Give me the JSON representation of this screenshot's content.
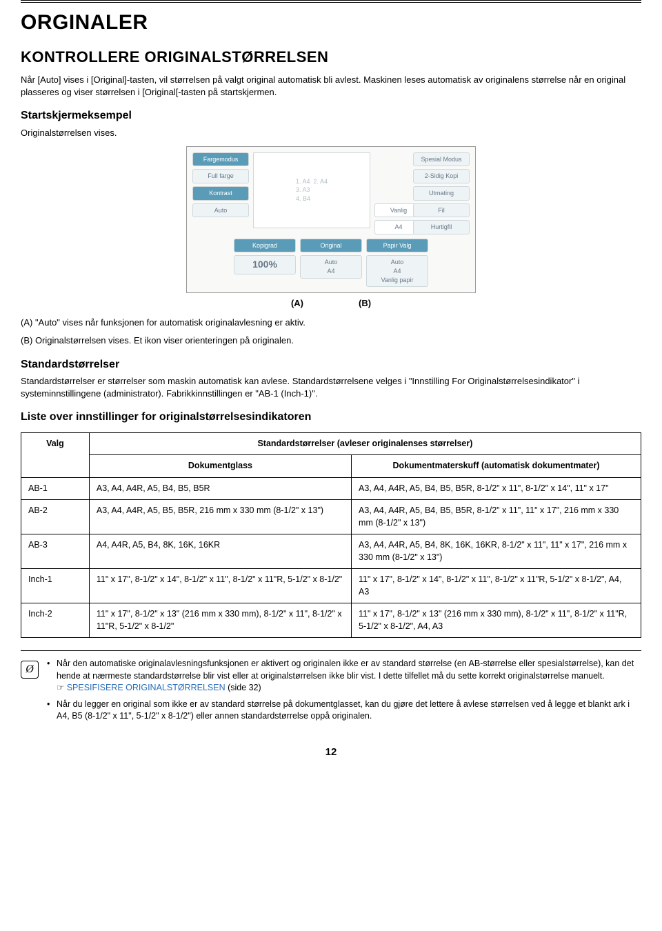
{
  "page": {
    "h1": "ORGINALER",
    "h2": "KONTROLLERE ORIGINALSTØRRELSEN",
    "intro1": "Når [Auto] vises i [Original]-tasten, vil størrelsen på valgt original automatisk bli avlest. Maskinen leses automatisk av originalens størrelse når en original plasseres og viser størrelsen i [Original[-tasten på startskjermen.",
    "h3_start": "Startskjermeksempel",
    "start_sub": "Originalstørrelsen vises.",
    "ab_label_a": "(A)",
    "ab_label_b": "(B)",
    "desc_a": "(A) \"Auto\" vises når funksjonen for automatisk originalavlesning er aktiv.",
    "desc_b": "(B) Originalstørrelsen vises. Et ikon viser orienteringen på originalen.",
    "h3_std": "Standardstørrelser",
    "std_desc": "Standardstørrelser er størrelser som maskin automatisk kan avlese. Standardstørrelsene velges i \"Innstilling For Originalstørrelsesindikator\" i systeminnstillingene (administrator). Fabrikkinnstillingen er \"AB-1 (Inch-1)\".",
    "h3_list": "Liste over innstillinger for originalstørrelsesindikatoren",
    "page_number": "12"
  },
  "ui": {
    "fargemodus": "Fargemodus",
    "full_farge": "Full farge",
    "kontrast": "Kontrast",
    "auto": "Auto",
    "kopigrad": "Kopigrad",
    "percent": "100%",
    "original": "Original",
    "auto2": "Auto",
    "a4": "A4",
    "papir_valg": "Papir Valg",
    "auto3": "Auto",
    "a4_2": "A4",
    "vanlig_papir": "Vanlig papir",
    "vanlig": "Vanlig",
    "a4_3": "A4",
    "spesial": "Spesial Modus",
    "tosidig": "2-Sidig Kopi",
    "utmating": "Utmating",
    "fil": "Fil",
    "hurtigfil": "Hurtigfil",
    "trays": "1. A4  2. A4\n3. A3\n4. B4"
  },
  "table": {
    "header_top": "Standardstørrelser (avleser originalenses størrelser)",
    "header_valg": "Valg",
    "header_glass": "Dokumentglass",
    "header_mater": "Dokumentmaterskuff (automatisk dokumentmater)",
    "rows": [
      {
        "valg": "AB-1",
        "glass": "A3, A4, A4R, A5, B4, B5, B5R",
        "mater": "A3, A4, A4R, A5, B4, B5, B5R, 8-1/2\" x 11\", 8-1/2\" x 14\", 11\" x 17\""
      },
      {
        "valg": "AB-2",
        "glass": "A3, A4, A4R, A5, B5, B5R, 216 mm x 330 mm (8-1/2\" x 13\")",
        "mater": "A3, A4, A4R, A5, B4, B5, B5R, 8-1/2\" x 11\", 11\" x 17\", 216 mm x 330 mm (8-1/2\" x 13\")"
      },
      {
        "valg": "AB-3",
        "glass": "A4, A4R, A5, B4, 8K, 16K, 16KR",
        "mater": "A3, A4, A4R, A5, B4, 8K, 16K, 16KR, 8-1/2\" x 11\", 11\" x 17\", 216 mm x 330 mm (8-1/2\" x 13\")"
      },
      {
        "valg": "Inch-1",
        "glass": "11\" x 17\", 8-1/2\" x 14\", 8-1/2\" x 11\", 8-1/2\" x 11\"R, 5-1/2\" x 8-1/2\"",
        "mater": "11\" x 17\", 8-1/2\" x 14\", 8-1/2\" x 11\", 8-1/2\" x 11\"R, 5-1/2\" x 8-1/2\", A4, A3"
      },
      {
        "valg": "Inch-2",
        "glass": "11\" x 17\", 8-1/2\" x 13\" (216 mm x 330 mm), 8-1/2\" x 11\", 8-1/2\" x 11\"R, 5-1/2\" x 8-1/2\"",
        "mater": "11\" x 17\", 8-1/2\" x 13\" (216 mm x 330 mm), 8-1/2\" x 11\", 8-1/2\" x 11\"R, 5-1/2\" x 8-1/2\", A4, A3"
      }
    ]
  },
  "tip": {
    "item1a": "Når den automatiske originalavlesningsfunksjonen er aktivert og originalen ikke er av standard størrelse (en AB-størrelse eller spesialstørrelse), kan det hende at nærmeste standardstørrelse blir vist eller at originalstørrelsen ikke blir vist. I dette tilfellet må du sette korrekt originalstørrelse manuelt.",
    "item1_link_prefix": "☞ ",
    "item1_link": "SPESIFISERE ORIGINALSTØRRELSEN",
    "item1_link_suffix": " (side 32)",
    "item2": "Når du legger en original som ikke er av standard størrelse på dokumentglasset, kan du gjøre det lettere å avlese størrelsen ved å legge et blankt ark i A4, B5 (8-1/2\" x 11\", 5-1/2\" x 8-1/2\") eller annen standardstørrelse oppå originalen."
  },
  "colors": {
    "text": "#000000",
    "bg": "#ffffff",
    "ui_header": "#5a9bb7",
    "ui_border": "#cfd8dc",
    "ui_text": "#678899",
    "link": "#2a6ebb"
  }
}
